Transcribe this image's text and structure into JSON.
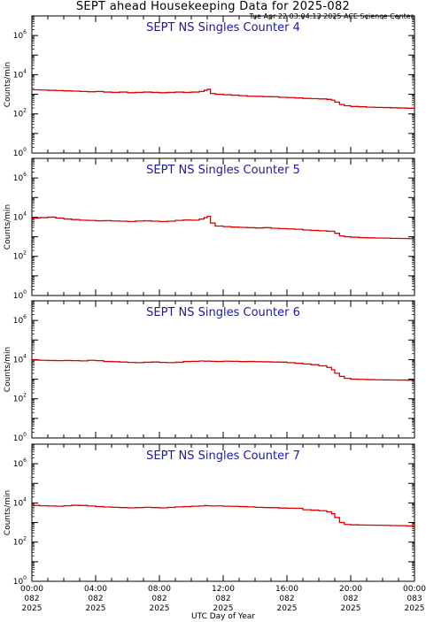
{
  "page": {
    "title": "SEPT ahead Housekeeping Data for 2025-082",
    "timestamp": "Tue Apr 22 03:04:13 2025 ACE Science Center",
    "xlabel": "UTC Day of Year",
    "ylabel": "Counts/min"
  },
  "colors": {
    "series": "#dd0000",
    "panel_title": "#1a1aa6",
    "axis": "#000000"
  },
  "chart_data": [
    {
      "type": "line",
      "title": "SEPT NS Singles Counter 4",
      "ylabel": "Counts/min",
      "yscale": "log",
      "ylim": [
        1,
        10000000
      ],
      "xlim": [
        0,
        24
      ],
      "x": [
        0,
        0.5,
        1,
        1.5,
        2,
        2.5,
        3,
        3.5,
        4,
        4.5,
        5,
        5.5,
        6,
        6.5,
        7,
        7.5,
        8,
        8.5,
        9,
        9.5,
        10,
        10.5,
        10.8,
        11,
        11.2,
        11.5,
        12,
        12.5,
        13,
        13.5,
        14,
        14.5,
        15,
        15.5,
        16,
        16.5,
        17,
        17.5,
        18,
        18.5,
        18.8,
        19,
        19.3,
        19.6,
        20,
        20.5,
        21,
        21.5,
        22,
        22.5,
        23,
        23.5,
        24
      ],
      "y": [
        1700,
        1650,
        1600,
        1550,
        1500,
        1450,
        1400,
        1350,
        1400,
        1300,
        1250,
        1300,
        1200,
        1250,
        1300,
        1250,
        1200,
        1250,
        1300,
        1250,
        1300,
        1400,
        1600,
        1800,
        1100,
        1000,
        950,
        900,
        850,
        800,
        780,
        760,
        750,
        700,
        680,
        650,
        620,
        600,
        580,
        550,
        500,
        400,
        300,
        260,
        240,
        230,
        220,
        215,
        210,
        205,
        200,
        195,
        190
      ]
    },
    {
      "type": "line",
      "title": "SEPT NS Singles Counter 5",
      "ylabel": "Counts/min",
      "yscale": "log",
      "ylim": [
        1,
        10000000
      ],
      "xlim": [
        0,
        24
      ],
      "x": [
        0,
        0.5,
        1,
        1.5,
        2,
        2.5,
        3,
        3.5,
        4,
        4.5,
        5,
        5.5,
        6,
        6.5,
        7,
        7.5,
        8,
        8.5,
        9,
        9.5,
        10,
        10.5,
        10.8,
        11,
        11.2,
        11.5,
        12,
        12.5,
        13,
        13.5,
        14,
        14.5,
        15,
        15.5,
        16,
        16.5,
        17,
        17.5,
        18,
        18.5,
        18.8,
        19,
        19.3,
        19.6,
        20,
        20.5,
        21,
        21.5,
        22,
        22.5,
        23,
        23.5,
        24
      ],
      "y": [
        9000,
        9500,
        10000,
        9000,
        8000,
        7500,
        7000,
        6800,
        6500,
        6600,
        6400,
        6200,
        6000,
        6300,
        6500,
        6200,
        6000,
        6200,
        6800,
        7200,
        7000,
        8000,
        9500,
        11000,
        5000,
        3500,
        3300,
        3100,
        3000,
        2900,
        2800,
        2900,
        2700,
        2600,
        2500,
        2400,
        2200,
        2100,
        2000,
        1900,
        1900,
        1500,
        1100,
        1000,
        950,
        900,
        880,
        860,
        850,
        830,
        820,
        810,
        800
      ]
    },
    {
      "type": "line",
      "title": "SEPT NS Singles Counter 6",
      "ylabel": "Counts/min",
      "yscale": "log",
      "ylim": [
        1,
        10000000
      ],
      "xlim": [
        0,
        24
      ],
      "x": [
        0,
        0.5,
        1,
        1.5,
        2,
        2.5,
        3,
        3.5,
        4,
        4.5,
        5,
        5.5,
        6,
        6.5,
        7,
        7.5,
        8,
        8.5,
        9,
        9.5,
        10,
        10.5,
        10.8,
        11,
        11.2,
        11.5,
        12,
        12.5,
        13,
        13.5,
        14,
        14.5,
        15,
        15.5,
        16,
        16.5,
        17,
        17.5,
        18,
        18.5,
        18.8,
        19,
        19.3,
        19.6,
        20,
        20.5,
        21,
        21.5,
        22,
        22.5,
        23,
        23.5,
        24
      ],
      "y": [
        9500,
        9200,
        9000,
        8800,
        9000,
        8800,
        8600,
        9200,
        8800,
        8000,
        7800,
        7500,
        7200,
        7000,
        7300,
        7500,
        7200,
        7000,
        7300,
        8000,
        8200,
        8500,
        8300,
        8400,
        8200,
        8000,
        8300,
        8200,
        7900,
        8000,
        7800,
        7700,
        7500,
        7400,
        7000,
        6500,
        6000,
        5500,
        4800,
        4000,
        3000,
        2000,
        1400,
        1100,
        1000,
        980,
        950,
        930,
        920,
        910,
        900,
        890,
        880
      ]
    },
    {
      "type": "line",
      "title": "SEPT NS Singles Counter 7",
      "ylabel": "Counts/min",
      "yscale": "log",
      "ylim": [
        1,
        10000000
      ],
      "xlim": [
        0,
        24
      ],
      "x": [
        0,
        0.5,
        1,
        1.5,
        2,
        2.5,
        3,
        3.5,
        4,
        4.5,
        5,
        5.5,
        6,
        6.5,
        7,
        7.5,
        8,
        8.5,
        9,
        9.5,
        10,
        10.5,
        10.8,
        11,
        11.2,
        11.5,
        12,
        12.5,
        13,
        13.5,
        14,
        14.5,
        15,
        15.5,
        16,
        16.5,
        17,
        17.5,
        18,
        18.5,
        18.8,
        19,
        19.3,
        19.6,
        20,
        20.5,
        21,
        21.5,
        22,
        22.5,
        23,
        23.5,
        24
      ],
      "y": [
        7500,
        7200,
        7000,
        6800,
        7200,
        7600,
        7400,
        7000,
        6500,
        6200,
        6000,
        5800,
        5600,
        5800,
        6000,
        5800,
        5600,
        5900,
        6300,
        6500,
        6800,
        7000,
        7300,
        7200,
        7000,
        7100,
        6800,
        6700,
        6500,
        6300,
        6000,
        5800,
        5700,
        5500,
        5400,
        5300,
        4500,
        4300,
        4000,
        3500,
        2800,
        1800,
        1000,
        800,
        760,
        750,
        740,
        730,
        720,
        700,
        690,
        670,
        650
      ]
    }
  ],
  "xticks": [
    {
      "x": 0,
      "time": "00:00",
      "day": "082",
      "year": "2025"
    },
    {
      "x": 4,
      "time": "04:00",
      "day": "082",
      "year": "2025"
    },
    {
      "x": 8,
      "time": "08:00",
      "day": "082",
      "year": "2025"
    },
    {
      "x": 12,
      "time": "12:00",
      "day": "082",
      "year": "2025"
    },
    {
      "x": 16,
      "time": "16:00",
      "day": "082",
      "year": "2025"
    },
    {
      "x": 20,
      "time": "20:00",
      "day": "082",
      "year": "2025"
    },
    {
      "x": 24,
      "time": "00:00",
      "day": "083",
      "year": "2025"
    }
  ],
  "yticks": [
    {
      "exp": 0,
      "label": "10",
      "sup": "0"
    },
    {
      "exp": 2,
      "label": "10",
      "sup": "2"
    },
    {
      "exp": 4,
      "label": "10",
      "sup": "4"
    },
    {
      "exp": 6,
      "label": "10",
      "sup": "6"
    }
  ]
}
